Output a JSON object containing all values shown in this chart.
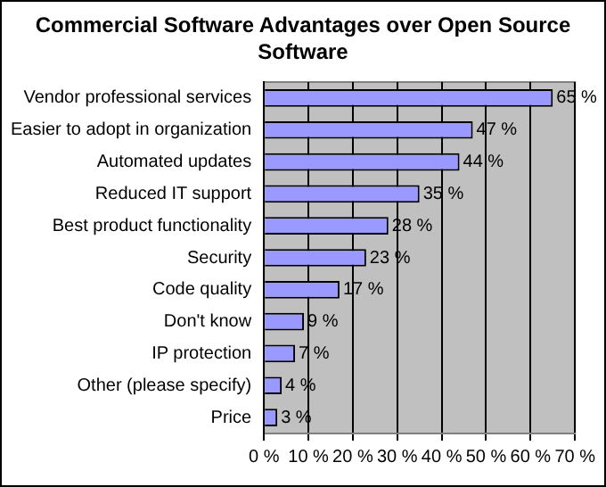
{
  "chart_data": {
    "type": "bar",
    "orientation": "horizontal",
    "title": "Commercial Software Advantages over Open Source Software",
    "categories": [
      "Vendor professional services",
      "Easier to adopt in organization",
      "Automated updates",
      "Reduced IT support",
      "Best product functionality",
      "Security",
      "Code quality",
      "Don't know",
      "IP protection",
      "Other (please specify)",
      "Price"
    ],
    "values": [
      65,
      47,
      44,
      35,
      28,
      23,
      17,
      9,
      7,
      4,
      3
    ],
    "value_labels": [
      "65 %",
      "47 %",
      "44 %",
      "35 %",
      "28 %",
      "23 %",
      "17 %",
      "9 %",
      "7 %",
      "4 %",
      "3 %"
    ],
    "color": "#9999ff",
    "xlim": [
      0,
      70
    ],
    "xticks": [
      {
        "value": 0,
        "label": "0 %"
      },
      {
        "value": 10,
        "label": "10 %"
      },
      {
        "value": 20,
        "label": "20 %"
      },
      {
        "value": 30,
        "label": "30 %"
      },
      {
        "value": 40,
        "label": "40 %"
      },
      {
        "value": 50,
        "label": "50 %"
      },
      {
        "value": 60,
        "label": "60 %"
      },
      {
        "value": 70,
        "label": "70 %"
      }
    ],
    "grid": "x"
  }
}
